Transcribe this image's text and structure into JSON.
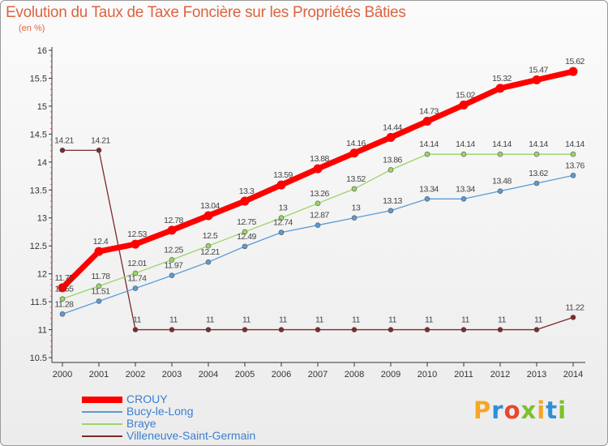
{
  "title": "Evolution du Taux de Taxe Foncière sur les Propriétés Bâties",
  "unit_label": "(en %)",
  "logo": {
    "letters": [
      "P",
      "r",
      "o",
      "x",
      "i",
      "t",
      "i"
    ],
    "colors": [
      "#f6a623",
      "#2e8fd9",
      "#e8462f",
      "#7cc12a",
      "#f6a623",
      "#2e8fd9",
      "#7cc12a"
    ]
  },
  "chart_data": {
    "type": "line",
    "title": "Evolution du Taux de Taxe Foncière sur les Propriétés Bâties",
    "ylabel": "(en %)",
    "xlabel": "",
    "categories": [
      "2000",
      "2001",
      "2002",
      "2003",
      "2004",
      "2005",
      "2006",
      "2007",
      "2008",
      "2009",
      "2010",
      "2011",
      "2012",
      "2013",
      "2014"
    ],
    "ylim": [
      10.5,
      16
    ],
    "yticks": [
      "10.5",
      "11",
      "11.5",
      "12",
      "12.5",
      "13",
      "13.5",
      "14",
      "14.5",
      "15",
      "15.5",
      "16"
    ],
    "grid": false,
    "legend_position": "bottom-left",
    "series": [
      {
        "name": "CROUY",
        "color": "#ff0000",
        "values": [
          11.75,
          12.4,
          12.53,
          12.78,
          13.04,
          13.3,
          13.59,
          13.88,
          14.16,
          14.44,
          14.73,
          15.02,
          15.32,
          15.47,
          15.62
        ],
        "labels": [
          "11.75",
          "12.4",
          "12.53",
          "12.78",
          "13.04",
          "13.3",
          "13.59",
          "13.88",
          "14.16",
          "14.44",
          "14.73",
          "15.02",
          "15.32",
          "15.47",
          "15.62"
        ]
      },
      {
        "name": "Bucy-le-Long",
        "color": "#5b9bd5",
        "values": [
          11.28,
          11.51,
          11.74,
          11.97,
          12.21,
          12.49,
          12.74,
          12.87,
          13,
          13.13,
          13.34,
          13.34,
          13.48,
          13.62,
          13.76
        ],
        "labels": [
          "11.28",
          "11.51",
          "11.74",
          "11.97",
          "12.21",
          "12.49",
          "12.74",
          "12.87",
          "13",
          "13.13",
          "13.34",
          "13.34",
          "13.48",
          "13.62",
          "13.76"
        ]
      },
      {
        "name": "Braye",
        "color": "#9ad466",
        "values": [
          11.55,
          11.78,
          12.01,
          12.25,
          12.5,
          12.75,
          13,
          13.26,
          13.52,
          13.86,
          14.14,
          14.14,
          14.14,
          14.14,
          14.14
        ],
        "labels": [
          "11.55",
          "11.78",
          "12.01",
          "12.25",
          "12.5",
          "12.75",
          "13",
          "13.26",
          "13.52",
          "13.86",
          "14.14",
          "14.14",
          "14.14",
          "14.14",
          "14.14"
        ]
      },
      {
        "name": "Villeneuve-Saint-Germain",
        "color": "#7b2b2b",
        "values": [
          14.21,
          14.21,
          11,
          11,
          11,
          11,
          11,
          11,
          11,
          11,
          11,
          11,
          11,
          11,
          11.22
        ],
        "labels": [
          "14.21",
          "14.21",
          "11",
          "11",
          "11",
          "11",
          "11",
          "11",
          "11",
          "11",
          "11",
          "11",
          "11",
          "11",
          "11.22"
        ]
      }
    ]
  }
}
